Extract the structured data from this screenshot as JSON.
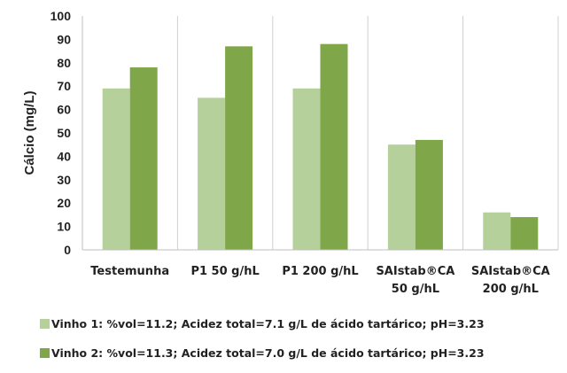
{
  "chart_data": {
    "type": "bar",
    "ylabel": "Cálcio (mg/L)",
    "ylim": [
      0,
      100
    ],
    "yticks": [
      0,
      10,
      20,
      30,
      40,
      50,
      60,
      70,
      80,
      90,
      100
    ],
    "grid": "vertical-separators",
    "legend_position": "bottom",
    "categories": [
      [
        "Testemunha"
      ],
      [
        "P1 50 g/hL"
      ],
      [
        "P1 200 g/hL"
      ],
      [
        "SAIstab®CA",
        "50 g/hL"
      ],
      [
        "SAIstab®CA",
        "200 g/hL"
      ]
    ],
    "series": [
      {
        "name": "Vinho 1: %vol=11.2; Acidez total=7.1 g/L de ácido tartárico; pH=3.23",
        "color": "#b5d09a",
        "values": [
          69,
          65,
          69,
          45,
          16
        ]
      },
      {
        "name": "Vinho 2: %vol=11.3; Acidez total=7.0 g/L de ácido tartárico; pH=3.23",
        "color": "#7fa648",
        "values": [
          78,
          87,
          88,
          47,
          14
        ]
      }
    ]
  }
}
